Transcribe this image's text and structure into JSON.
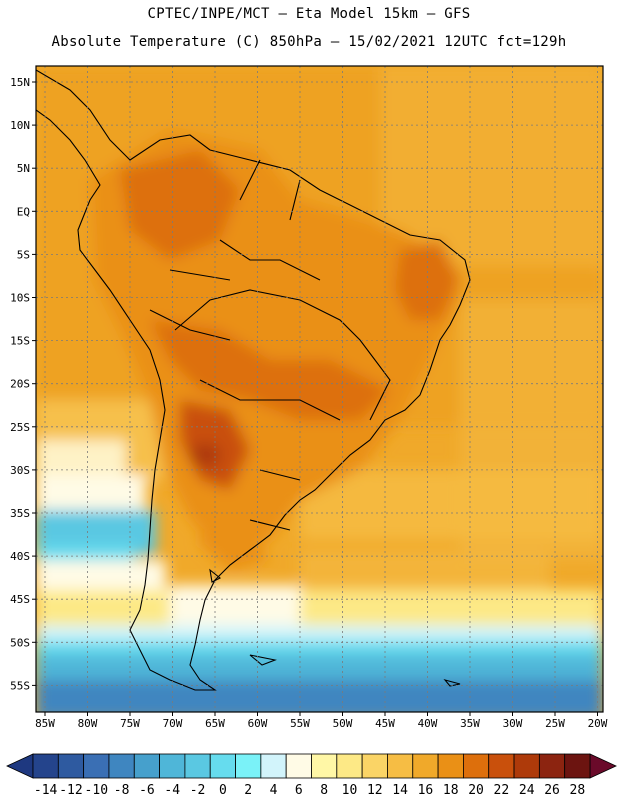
{
  "header": {
    "line1": "CPTEC/INPE/MCT –  Eta Model 15km – GFS",
    "line2": "Absolute Temperature (C) 850hPa – 15/02/2021 12UTC fct=129h"
  },
  "axes": {
    "lat_labels": [
      "15N",
      "10N",
      "5N",
      "EQ",
      "5S",
      "10S",
      "15S",
      "20S",
      "25S",
      "30S",
      "35S",
      "40S",
      "45S",
      "50S",
      "55S"
    ],
    "lon_labels": [
      "85W",
      "80W",
      "75W",
      "70W",
      "65W",
      "60W",
      "55W",
      "50W",
      "45W",
      "40W",
      "35W",
      "30W",
      "25W",
      "20W"
    ]
  },
  "colorbar": {
    "tick_labels": [
      "-14",
      "-12",
      "-10",
      "-8",
      "-6",
      "-4",
      "-2",
      "0",
      "2",
      "4",
      "6",
      "8",
      "10",
      "12",
      "14",
      "16",
      "18",
      "20",
      "22",
      "24",
      "26",
      "28"
    ],
    "colors": [
      "#24448c",
      "#2e5aa0",
      "#3a6fb4",
      "#3f86c0",
      "#46a0cc",
      "#4fb6d8",
      "#5ac8e2",
      "#66dcee",
      "#7af2f8",
      "#d2f4fb",
      "#fffbe6",
      "#fff7a6",
      "#fde986",
      "#fad466",
      "#f6bd44",
      "#f0a92a",
      "#ea9016",
      "#dd6f0c",
      "#c9500c",
      "#ae3a0a",
      "#8c2410",
      "#6c1410"
    ]
  }
}
